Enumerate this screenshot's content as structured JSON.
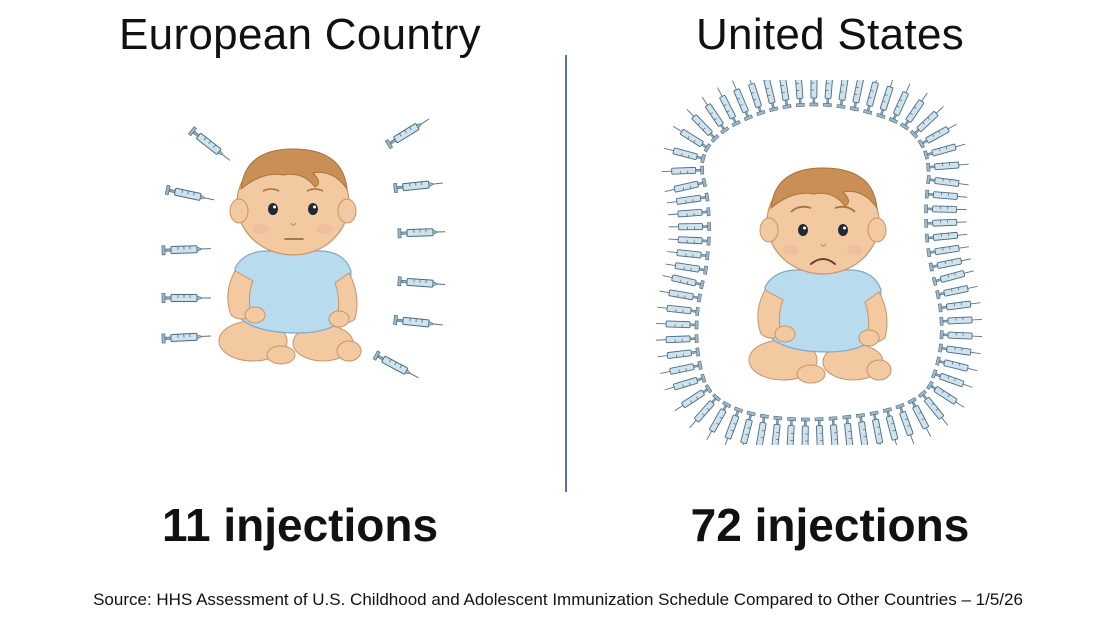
{
  "left": {
    "title": "European Country",
    "count_label": "11 injections",
    "injections": 11,
    "baby_expression": "neutral"
  },
  "right": {
    "title": "United States",
    "count_label": "72 injections",
    "injections": 72,
    "baby_expression": "sad"
  },
  "source": "Source: HHS Assessment of U.S. Childhood and Adolescent Immunization Schedule Compared to Other Countries – 1/5/26",
  "colors": {
    "skin": "#f2c9a0",
    "skin_shadow": "#dba67a",
    "hair": "#c98f55",
    "onesie": "#b9dbee",
    "syringe_body": "#cfe3ee",
    "syringe_outline": "#4d6a80",
    "divider": "#5b6fae"
  },
  "icons": [
    "syringe-icon",
    "baby-illustration"
  ]
}
